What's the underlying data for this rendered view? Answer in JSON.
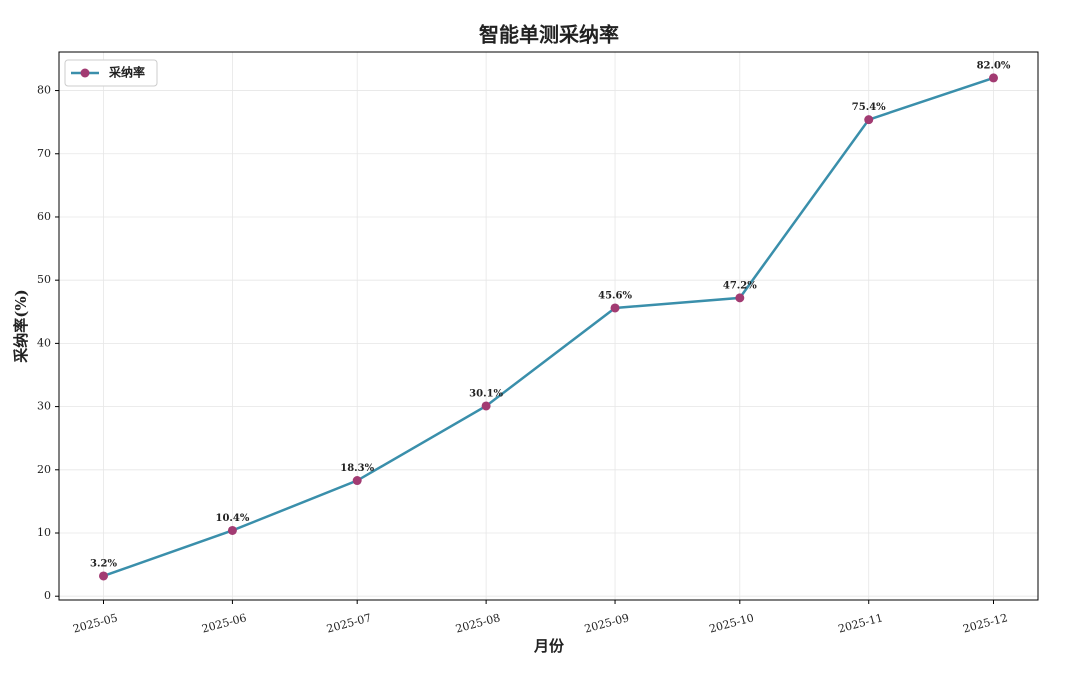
{
  "chart_data": {
    "type": "line",
    "title": "智能单测采纳率",
    "x_label": "月份",
    "y_label": "采纳率(%)",
    "x": [
      "2025-05",
      "2025-06",
      "2025-07",
      "2025-08",
      "2025-09",
      "2025-10",
      "2025-11",
      "2025-12"
    ],
    "series": [
      {
        "name": "采纳率",
        "color": "#3a8fab",
        "marker_color": "#a23b72",
        "values": [
          3.2,
          10.4,
          18.3,
          30.1,
          45.6,
          47.2,
          75.4,
          82.0
        ],
        "value_labels": [
          "3.2%",
          "10.4%",
          "18.3%",
          "30.1%",
          "45.6%",
          "47.2%",
          "75.4%",
          "82.0%"
        ]
      }
    ],
    "ylim": [
      -0.6,
      86.1
    ],
    "yticks": [
      0,
      10,
      20,
      30,
      40,
      50,
      60,
      70,
      80
    ],
    "grid": true,
    "legend": "upper left"
  }
}
